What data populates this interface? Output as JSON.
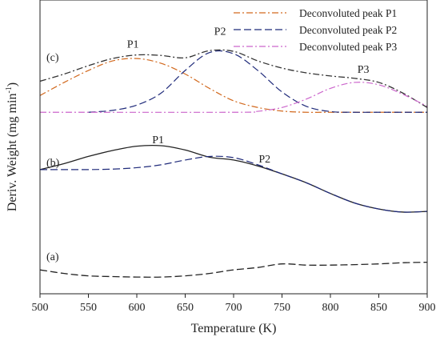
{
  "chart_data": {
    "type": "line",
    "xlabel": "Temperature (K)",
    "ylabel_main": "Deriv. Weight (mg min",
    "ylabel_sup": "-1",
    "ylabel_close": ")",
    "xlim": [
      500,
      900
    ],
    "xticks": [
      500,
      550,
      600,
      650,
      700,
      750,
      800,
      850,
      900
    ],
    "y_ticks_shown": false,
    "grid": false,
    "legend_placement": "top-right",
    "legend": [
      {
        "label": "Deconvoluted peak P1",
        "color": "#d2691e",
        "dash": "dashdot"
      },
      {
        "label": "Deconvoluted peak P2",
        "color": "#1f2a7a",
        "dash": "dash"
      },
      {
        "label": "Deconvoluted peak P3",
        "color": "#cc66cc",
        "dash": "dashdot"
      }
    ],
    "annotations": [
      {
        "text": "P1",
        "x": 596,
        "y": 8.0
      },
      {
        "text": "P2",
        "x": 686,
        "y": 8.55
      },
      {
        "text": "P3",
        "x": 834,
        "y": 6.95
      },
      {
        "text": "P1",
        "x": 622,
        "y": 4.0
      },
      {
        "text": "P2",
        "x": 732,
        "y": 3.2
      }
    ],
    "panel_labels": [
      {
        "text": "(c)",
        "y": 7.45
      },
      {
        "text": "(b)",
        "y": 3.05
      },
      {
        "text": "(a)",
        "y": -0.9
      }
    ],
    "series": [
      {
        "panel": "c",
        "role": "total",
        "color": "#333333",
        "dash": "dashdot",
        "x": [
          500,
          525,
          550,
          575,
          600,
          625,
          650,
          675,
          700,
          725,
          750,
          775,
          800,
          825,
          850,
          875,
          900
        ],
        "y": [
          6.6,
          6.9,
          7.25,
          7.55,
          7.7,
          7.68,
          7.58,
          7.88,
          7.85,
          7.45,
          7.15,
          6.95,
          6.82,
          6.72,
          6.55,
          6.1,
          5.5
        ]
      },
      {
        "panel": "c",
        "role": "P1",
        "color": "#d2691e",
        "dash": "dashdot",
        "x": [
          500,
          525,
          550,
          575,
          600,
          625,
          650,
          675,
          700,
          725,
          750,
          775,
          800,
          850,
          900
        ],
        "y": [
          6.0,
          6.55,
          7.05,
          7.45,
          7.55,
          7.35,
          6.9,
          6.3,
          5.78,
          5.5,
          5.35,
          5.3,
          5.3,
          5.3,
          5.3
        ]
      },
      {
        "panel": "c",
        "role": "P2",
        "color": "#1f2a7a",
        "dash": "dash",
        "x": [
          550,
          575,
          600,
          625,
          650,
          675,
          700,
          725,
          750,
          775,
          800,
          825,
          850,
          900
        ],
        "y": [
          5.3,
          5.38,
          5.6,
          6.1,
          7.05,
          7.8,
          7.75,
          7.05,
          6.15,
          5.55,
          5.33,
          5.3,
          5.3,
          5.3
        ]
      },
      {
        "panel": "c",
        "role": "P3",
        "color": "#cc66cc",
        "dash": "dashdot",
        "x": [
          500,
          700,
          725,
          750,
          775,
          800,
          825,
          850,
          875,
          900
        ],
        "y": [
          5.3,
          5.3,
          5.34,
          5.5,
          5.85,
          6.3,
          6.55,
          6.45,
          6.05,
          5.55
        ]
      },
      {
        "panel": "b",
        "role": "total",
        "color": "#222222",
        "dash": "solid",
        "x": [
          500,
          525,
          550,
          575,
          600,
          625,
          650,
          675,
          700,
          725,
          750,
          775,
          800,
          825,
          850,
          875,
          900
        ],
        "y": [
          2.9,
          3.15,
          3.45,
          3.7,
          3.88,
          3.9,
          3.72,
          3.42,
          3.3,
          3.05,
          2.72,
          2.35,
          1.9,
          1.5,
          1.25,
          1.12,
          1.15
        ]
      },
      {
        "panel": "b",
        "role": "P2",
        "color": "#1f2a7a",
        "dash": "dash",
        "x": [
          500,
          525,
          550,
          575,
          600,
          625,
          650,
          675,
          700,
          725,
          750,
          775,
          800,
          825,
          850,
          875,
          900
        ],
        "y": [
          2.9,
          2.9,
          2.9,
          2.92,
          2.98,
          3.1,
          3.3,
          3.45,
          3.4,
          3.1,
          2.72,
          2.35,
          1.9,
          1.5,
          1.25,
          1.12,
          1.15
        ]
      },
      {
        "panel": "a",
        "role": "total",
        "color": "#222222",
        "dash": "dash",
        "x": [
          500,
          525,
          550,
          575,
          600,
          625,
          650,
          675,
          700,
          725,
          750,
          775,
          800,
          825,
          850,
          875,
          900
        ],
        "y": [
          -1.3,
          -1.45,
          -1.55,
          -1.58,
          -1.6,
          -1.6,
          -1.55,
          -1.45,
          -1.3,
          -1.2,
          -1.05,
          -1.1,
          -1.1,
          -1.08,
          -1.05,
          -1.0,
          -0.98
        ]
      }
    ]
  }
}
